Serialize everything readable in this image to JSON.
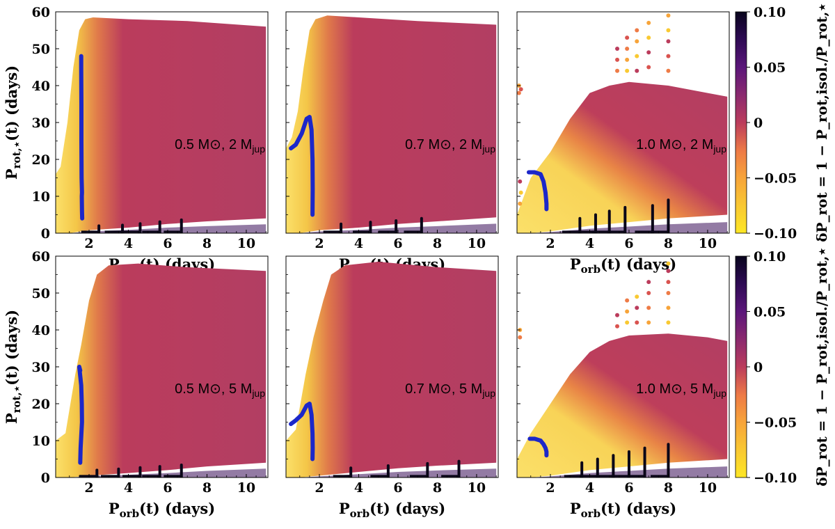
{
  "chart_data": {
    "type": "scatter",
    "layout": "2x3 grid of panels with shared colorbar per row",
    "xlabel": "P_orb(t) (days)",
    "ylabel": "P_rot,⋆(t) (days)",
    "xlim": [
      0.3,
      11.1
    ],
    "ylim": [
      0,
      60
    ],
    "xticks": [
      "2",
      "4",
      "6",
      "8",
      "10"
    ],
    "xtick_values": [
      2,
      4,
      6,
      8,
      10
    ],
    "yticks": [
      "0",
      "10",
      "20",
      "30",
      "40",
      "50",
      "60"
    ],
    "ytick_values": [
      0,
      10,
      20,
      30,
      40,
      50,
      60
    ],
    "colorbar": {
      "label": "δP_rot = 1 − P_rot,isol./P_rot,⋆",
      "range": [
        -0.1,
        0.1
      ],
      "ticks": [
        "0.10",
        "0.05",
        "0",
        "−0.05",
        "−0.10"
      ],
      "tick_values": [
        0.1,
        0.05,
        0,
        -0.05,
        -0.1
      ],
      "colormap": "inferno_r",
      "colors": [
        "#fde725",
        "#f9c932",
        "#f7a43a",
        "#ee7b46",
        "#d9534f",
        "#bb3c5c",
        "#b33e62",
        "#8c2a6e",
        "#5b167a",
        "#2c0a52",
        "#08041c"
      ]
    },
    "blue_track_color": "#1c27c9",
    "panels": [
      {
        "star_mass": "0.5 M⊙",
        "planet_mass": "2 M",
        "region_top": [
          [
            0.3,
            16
          ],
          [
            0.55,
            18
          ],
          [
            0.9,
            30
          ],
          [
            1.2,
            45
          ],
          [
            1.5,
            55
          ],
          [
            1.8,
            58
          ],
          [
            2.2,
            58.5
          ],
          [
            4,
            58
          ],
          [
            7,
            57.5
          ],
          [
            11,
            56
          ]
        ],
        "region_bottom": [
          [
            0.3,
            0
          ],
          [
            1,
            0
          ],
          [
            2,
            0.8
          ],
          [
            4,
            1.5
          ],
          [
            6,
            2.5
          ],
          [
            8,
            3.2
          ],
          [
            11,
            4
          ]
        ],
        "blue_track": [
          [
            1.65,
            4
          ],
          [
            1.64,
            6
          ],
          [
            1.63,
            10
          ],
          [
            1.64,
            11
          ],
          [
            1.62,
            15
          ],
          [
            1.61,
            25
          ],
          [
            1.61,
            35
          ],
          [
            1.6,
            45
          ],
          [
            1.6,
            48
          ]
        ],
        "dark_spikes": [
          [
            2.5,
            2
          ],
          [
            3.7,
            2.2
          ],
          [
            4.6,
            2.6
          ],
          [
            5.6,
            3.1
          ],
          [
            6.7,
            3.6
          ]
        ],
        "scatter_points": []
      },
      {
        "star_mass": "0.7 M⊙",
        "planet_mass": "2 M",
        "region_top": [
          [
            0.3,
            23
          ],
          [
            0.6,
            26
          ],
          [
            0.9,
            33
          ],
          [
            1.2,
            45
          ],
          [
            1.5,
            55
          ],
          [
            1.8,
            58
          ],
          [
            2.4,
            59
          ],
          [
            4,
            58.5
          ],
          [
            7,
            57.5
          ],
          [
            11,
            56.5
          ]
        ],
        "region_bottom": [
          [
            0.3,
            0
          ],
          [
            1,
            0
          ],
          [
            2,
            0.8
          ],
          [
            4,
            1.5
          ],
          [
            6,
            2.5
          ],
          [
            8,
            3.2
          ],
          [
            11,
            4.3
          ]
        ],
        "blue_track": [
          [
            0.55,
            23
          ],
          [
            0.8,
            24
          ],
          [
            1.1,
            27
          ],
          [
            1.35,
            31
          ],
          [
            1.5,
            31.5
          ],
          [
            1.6,
            28
          ],
          [
            1.65,
            20
          ],
          [
            1.66,
            12
          ],
          [
            1.65,
            5
          ]
        ],
        "dark_spikes": [
          [
            3.1,
            2.5
          ],
          [
            4.6,
            3
          ],
          [
            5.9,
            3.4
          ],
          [
            7.2,
            4
          ]
        ],
        "scatter_points": []
      },
      {
        "star_mass": "1.0 M⊙",
        "planet_mass": "2 M",
        "region_top": [
          [
            0.3,
            5
          ],
          [
            1,
            15
          ],
          [
            2,
            22
          ],
          [
            3,
            31
          ],
          [
            4,
            38
          ],
          [
            5,
            40
          ],
          [
            6,
            41
          ],
          [
            8,
            40
          ],
          [
            10,
            38
          ],
          [
            11,
            37
          ]
        ],
        "region_bottom": [
          [
            0.3,
            0
          ],
          [
            1,
            0
          ],
          [
            2,
            0.5
          ],
          [
            4,
            2
          ],
          [
            6,
            3
          ],
          [
            8,
            4
          ],
          [
            11,
            5
          ]
        ],
        "blue_track": [
          [
            0.9,
            16.5
          ],
          [
            1.2,
            16.5
          ],
          [
            1.5,
            16
          ],
          [
            1.65,
            14
          ],
          [
            1.75,
            11
          ],
          [
            1.8,
            8
          ],
          [
            1.8,
            6.5
          ]
        ],
        "dark_spikes": [
          [
            3.5,
            4
          ],
          [
            4.3,
            5
          ],
          [
            5,
            6
          ],
          [
            5.8,
            7
          ],
          [
            7.2,
            7.5
          ],
          [
            8.0,
            9
          ]
        ],
        "scatter_points": [
          [
            0.4,
            40
          ],
          [
            0.4,
            38
          ],
          [
            0.5,
            39
          ],
          [
            0.45,
            14
          ],
          [
            0.5,
            11
          ],
          [
            0.45,
            8
          ],
          [
            5.4,
            44
          ],
          [
            5.4,
            47
          ],
          [
            5.4,
            50
          ],
          [
            5.9,
            44
          ],
          [
            5.9,
            47
          ],
          [
            5.9,
            50
          ],
          [
            5.9,
            53
          ],
          [
            6.4,
            44
          ],
          [
            6.4,
            48
          ],
          [
            6.4,
            52
          ],
          [
            6.4,
            55
          ],
          [
            7,
            45
          ],
          [
            7,
            49
          ],
          [
            7,
            53
          ],
          [
            7,
            57
          ],
          [
            8,
            44
          ],
          [
            8,
            48
          ],
          [
            8,
            52
          ],
          [
            8,
            55
          ],
          [
            8,
            59
          ]
        ]
      },
      {
        "star_mass": "0.5 M⊙",
        "planet_mass": "5 M",
        "region_top": [
          [
            0.3,
            10
          ],
          [
            0.8,
            12
          ],
          [
            1.3,
            28
          ],
          [
            1.6,
            36
          ],
          [
            2,
            48
          ],
          [
            2.4,
            55
          ],
          [
            3,
            57.5
          ],
          [
            4.5,
            58
          ],
          [
            7,
            57
          ],
          [
            11,
            56
          ]
        ],
        "region_bottom": [
          [
            0.3,
            0
          ],
          [
            1,
            0
          ],
          [
            2,
            0.5
          ],
          [
            4,
            1.2
          ],
          [
            6,
            2
          ],
          [
            8,
            3
          ],
          [
            11,
            4
          ]
        ],
        "blue_track": [
          [
            1.55,
            4
          ],
          [
            1.57,
            8
          ],
          [
            1.6,
            11
          ],
          [
            1.62,
            13
          ],
          [
            1.64,
            15
          ],
          [
            1.63,
            20
          ],
          [
            1.6,
            25
          ],
          [
            1.5,
            30
          ],
          [
            1.55,
            29
          ]
        ],
        "dark_spikes": [
          [
            2.4,
            2
          ],
          [
            3.5,
            2.3
          ],
          [
            4.6,
            2.7
          ],
          [
            5.6,
            3
          ],
          [
            6.7,
            3.4
          ]
        ],
        "scatter_points": []
      },
      {
        "star_mass": "0.7 M⊙",
        "planet_mass": "5 M",
        "region_top": [
          [
            0.3,
            10
          ],
          [
            0.8,
            13
          ],
          [
            1.3,
            28
          ],
          [
            1.7,
            38
          ],
          [
            2.2,
            48
          ],
          [
            2.6,
            55
          ],
          [
            3.3,
            57.5
          ],
          [
            5,
            58.5
          ],
          [
            8,
            57
          ],
          [
            11,
            56
          ]
        ],
        "region_bottom": [
          [
            0.3,
            0
          ],
          [
            1,
            0
          ],
          [
            2,
            0.5
          ],
          [
            4,
            1.5
          ],
          [
            6,
            2.5
          ],
          [
            8,
            3.2
          ],
          [
            11,
            4
          ]
        ],
        "blue_track": [
          [
            0.55,
            14.5
          ],
          [
            0.8,
            15.5
          ],
          [
            1.1,
            17
          ],
          [
            1.35,
            19.5
          ],
          [
            1.5,
            20
          ],
          [
            1.6,
            17
          ],
          [
            1.65,
            12
          ],
          [
            1.66,
            8
          ],
          [
            1.65,
            5
          ]
        ],
        "dark_spikes": [
          [
            3.6,
            2.6
          ],
          [
            5.5,
            3.2
          ],
          [
            7.5,
            3.8
          ],
          [
            9.1,
            4.4
          ]
        ],
        "scatter_points": []
      },
      {
        "star_mass": "1.0 M⊙",
        "planet_mass": "5 M",
        "region_top": [
          [
            0.3,
            5
          ],
          [
            1,
            12
          ],
          [
            2,
            20
          ],
          [
            3,
            28
          ],
          [
            4,
            34
          ],
          [
            5,
            37
          ],
          [
            6,
            38.5
          ],
          [
            8,
            39
          ],
          [
            10,
            38
          ],
          [
            11,
            37
          ]
        ],
        "region_bottom": [
          [
            0.3,
            0
          ],
          [
            1,
            0
          ],
          [
            2,
            0.5
          ],
          [
            4,
            2
          ],
          [
            6,
            3
          ],
          [
            8,
            4
          ],
          [
            11,
            5
          ]
        ],
        "blue_track": [
          [
            0.95,
            10.5
          ],
          [
            1.2,
            10.5
          ],
          [
            1.5,
            10
          ],
          [
            1.65,
            9
          ],
          [
            1.75,
            8
          ],
          [
            1.8,
            7
          ],
          [
            1.8,
            6
          ]
        ],
        "dark_spikes": [
          [
            3.6,
            4
          ],
          [
            4.4,
            5
          ],
          [
            5.2,
            6
          ],
          [
            6.0,
            7
          ],
          [
            6.8,
            8
          ],
          [
            8.0,
            9
          ]
        ],
        "scatter_points": [
          [
            0.45,
            40
          ],
          [
            0.45,
            38
          ],
          [
            5.4,
            41
          ],
          [
            5.4,
            44
          ],
          [
            5.9,
            42
          ],
          [
            5.9,
            45
          ],
          [
            5.9,
            48
          ],
          [
            6.4,
            42
          ],
          [
            6.4,
            46
          ],
          [
            6.4,
            49
          ],
          [
            7,
            42
          ],
          [
            7,
            46
          ],
          [
            7,
            50
          ],
          [
            7,
            53
          ],
          [
            8,
            42
          ],
          [
            8,
            46
          ],
          [
            8,
            50
          ],
          [
            8,
            53
          ],
          [
            8,
            56
          ],
          [
            8,
            58
          ]
        ]
      }
    ]
  }
}
